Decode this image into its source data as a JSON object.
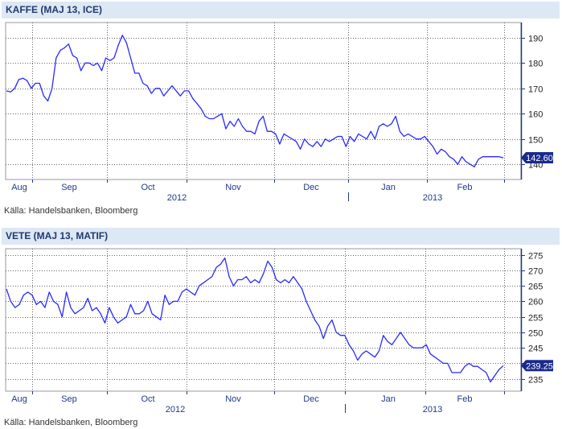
{
  "chart_data": [
    {
      "type": "line",
      "title": "KAFFE (MAJ 13, ICE)",
      "source": "Källa: Handelsbanken, Bloomberg",
      "last_value_label": "142.60",
      "ylim": [
        134,
        196
      ],
      "yticks": [
        140,
        150,
        160,
        170,
        180,
        190
      ],
      "month_labels": [
        "Aug",
        "Sep",
        "Oct",
        "Nov",
        "Dec",
        "Jan",
        "Feb"
      ],
      "year_labels": [
        "2012",
        "2013"
      ],
      "grid": true,
      "series": [
        {
          "color": "#2a2aff",
          "values": [
            169,
            168.6,
            170,
            173.5,
            174,
            173,
            170,
            172,
            172,
            167,
            165,
            170,
            182,
            185,
            186,
            187.5,
            183,
            182,
            177,
            180,
            180,
            179,
            180,
            177,
            182,
            181,
            182,
            187,
            191,
            188,
            182,
            176,
            176,
            172,
            171,
            168,
            170,
            170,
            167,
            169,
            171,
            169,
            167,
            169,
            169,
            166,
            164,
            162,
            159,
            158,
            158,
            159,
            160,
            154,
            157,
            155,
            158,
            155,
            153,
            153,
            152,
            157,
            159,
            153,
            153,
            152,
            148,
            152,
            151,
            150,
            149,
            146,
            150,
            148,
            147,
            149,
            147,
            150,
            149,
            150,
            151,
            151,
            147,
            151,
            149,
            152,
            151,
            150,
            153,
            150,
            155,
            156,
            155,
            156,
            159,
            153,
            151,
            152,
            151,
            150,
            150,
            151,
            149,
            147,
            144,
            146,
            145,
            143,
            142,
            140,
            143,
            141,
            140,
            139,
            142,
            143,
            143,
            143,
            143,
            143,
            142.6
          ]
        }
      ]
    },
    {
      "type": "line",
      "title": "VETE (MAJ 13, MATIF)",
      "source": "Källa: Handelsbanken, Bloomberg",
      "last_value_label": "239.25",
      "ylim": [
        231,
        277
      ],
      "yticks": [
        235,
        240,
        245,
        250,
        255,
        260,
        265,
        270,
        275
      ],
      "month_labels": [
        "Aug",
        "Sep",
        "Oct",
        "Nov",
        "Dec",
        "Jan",
        "Feb"
      ],
      "year_labels": [
        "2012",
        "2013"
      ],
      "grid": true,
      "series": [
        {
          "color": "#2a2aff",
          "values": [
            264,
            260,
            258,
            259,
            262,
            263,
            262,
            259,
            260,
            258,
            263,
            260,
            259,
            255,
            263,
            258,
            256,
            257,
            258,
            261,
            257,
            258,
            256,
            253,
            258,
            255,
            253,
            254,
            255,
            259,
            256,
            256,
            257,
            260,
            256,
            255,
            254,
            262,
            259,
            260,
            260,
            263,
            264,
            263,
            262,
            265,
            266,
            267,
            268,
            271,
            272,
            274,
            268,
            265,
            267,
            267,
            268,
            266,
            267,
            266,
            269,
            273,
            271,
            267,
            266,
            267,
            266,
            268,
            266,
            264,
            260,
            257,
            254,
            252,
            248,
            252,
            254,
            250,
            249,
            249,
            246,
            244,
            241,
            243,
            244,
            243,
            242,
            244,
            249,
            247,
            246,
            248,
            250,
            248,
            246,
            245,
            245,
            245,
            246,
            243,
            242,
            241,
            240,
            240,
            237,
            237,
            237,
            239,
            240,
            239,
            239,
            238,
            237,
            234,
            236,
            238,
            239.25
          ]
        }
      ]
    }
  ]
}
